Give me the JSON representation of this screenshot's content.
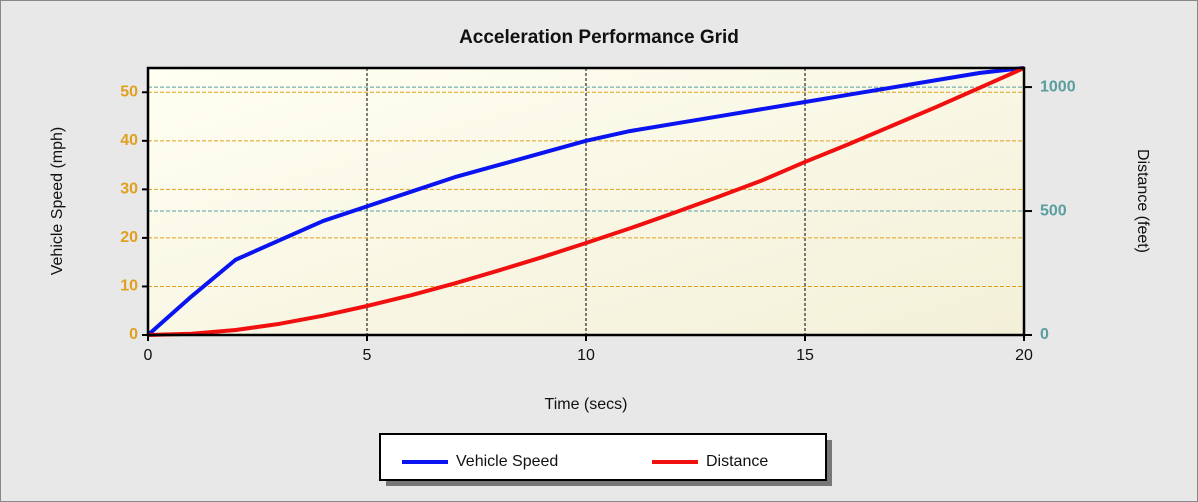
{
  "chart_data": {
    "type": "line",
    "title": "Acceleration Performance Grid",
    "x_label": "Time (secs)",
    "y_label": "Vehicle Speed (mph)",
    "y2_label": "Distance (feet)",
    "x": [
      0,
      1,
      2,
      3,
      4,
      5,
      6,
      7,
      8,
      9,
      10,
      11,
      12,
      13,
      14,
      15,
      16,
      17,
      18,
      19,
      20
    ],
    "xlim": [
      0,
      20
    ],
    "xticks": [
      0,
      5,
      10,
      15,
      20
    ],
    "ylim": [
      0,
      55
    ],
    "yticks": [
      0,
      10,
      20,
      30,
      40,
      50
    ],
    "y2lim": [
      0,
      1077
    ],
    "y2ticks": [
      0,
      500,
      1000
    ],
    "grid": true,
    "legend": "bottom",
    "series": [
      {
        "name": "Vehicle Speed",
        "color": "#0a14f0",
        "values": [
          0,
          8,
          15.5,
          19.5,
          23.5,
          26.5,
          29.5,
          32.5,
          35,
          37.5,
          40,
          42,
          43.5,
          45,
          46.5,
          48,
          49.5,
          51,
          52.5,
          54,
          55
        ]
      },
      {
        "name": "Distance",
        "color": "#f01010",
        "axis": "y2",
        "values": [
          0,
          5,
          20,
          45,
          78,
          117,
          160,
          208,
          260,
          314,
          371,
          430,
          492,
          556,
          622,
          698,
          770,
          845,
          920,
          998,
          1077
        ]
      }
    ]
  }
}
